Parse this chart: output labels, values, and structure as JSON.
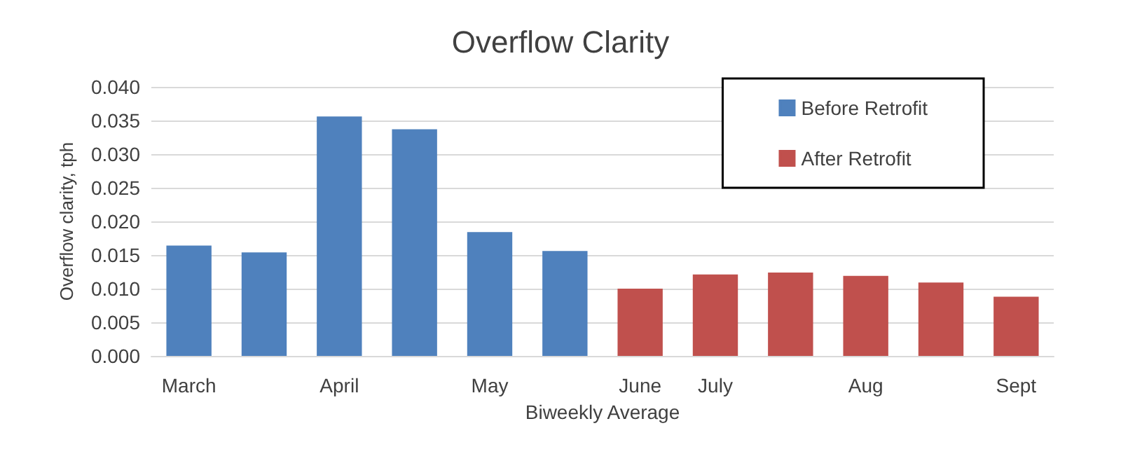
{
  "chart_data": {
    "type": "bar",
    "title": "Overflow Clarity",
    "xlabel": "Biweekly Average",
    "ylabel": "Overflow clarity, tph",
    "categories": [
      "March",
      null,
      "April",
      null,
      "May",
      null,
      "June",
      "July",
      null,
      "Aug",
      null,
      "Sept"
    ],
    "series": [
      {
        "name": "Before Retrofit",
        "color": "#4f81bd",
        "values": [
          0.0164,
          0.0154,
          0.0356,
          0.0337,
          0.0184,
          0.0156,
          null,
          null,
          null,
          null,
          null,
          null
        ]
      },
      {
        "name": "After Retrofit",
        "color": "#c0504d",
        "values": [
          null,
          null,
          null,
          null,
          null,
          null,
          0.01,
          0.0121,
          0.0124,
          0.0119,
          0.0109,
          0.0088
        ]
      }
    ],
    "stacked": true,
    "ylim": [
      0,
      0.04
    ],
    "yticks": [
      {
        "value": 0,
        "label": "0.000"
      },
      0.005,
      {
        "value": 0.01,
        "label": "0.010"
      },
      0.015,
      {
        "value": 0.02,
        "label": "0.020"
      },
      0.025,
      {
        "value": 0.03,
        "label": "0.030"
      },
      0.035,
      {
        "value": 0.04,
        "label": "0.040"
      }
    ],
    "grid": "y",
    "legend": "top right"
  }
}
